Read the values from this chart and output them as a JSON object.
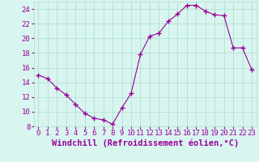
{
  "hours": [
    0,
    1,
    2,
    3,
    4,
    5,
    6,
    7,
    8,
    9,
    10,
    11,
    12,
    13,
    14,
    15,
    16,
    17,
    18,
    19,
    20,
    21,
    22,
    23
  ],
  "values": [
    15.0,
    14.5,
    13.2,
    12.3,
    11.0,
    9.8,
    9.1,
    8.9,
    8.3,
    10.5,
    12.5,
    17.8,
    20.3,
    20.7,
    22.3,
    23.3,
    24.5,
    24.5,
    23.7,
    23.2,
    23.1,
    18.7,
    18.7,
    15.7
  ],
  "line_color": "#990099",
  "marker": "+",
  "marker_size": 4,
  "bg_color": "#d9f5f0",
  "grid_color": "#aaddcc",
  "xlabel": "Windchill (Refroidissement éolien,°C)",
  "xlabel_color": "#990099",
  "xlabel_fontsize": 7.5,
  "tick_color": "#990099",
  "ylim": [
    8,
    25
  ],
  "yticks": [
    8,
    10,
    12,
    14,
    16,
    18,
    20,
    22,
    24
  ],
  "xticks": [
    0,
    1,
    2,
    3,
    4,
    5,
    6,
    7,
    8,
    9,
    10,
    11,
    12,
    13,
    14,
    15,
    16,
    17,
    18,
    19,
    20,
    21,
    22,
    23
  ],
  "tick_fontsize": 6.5
}
